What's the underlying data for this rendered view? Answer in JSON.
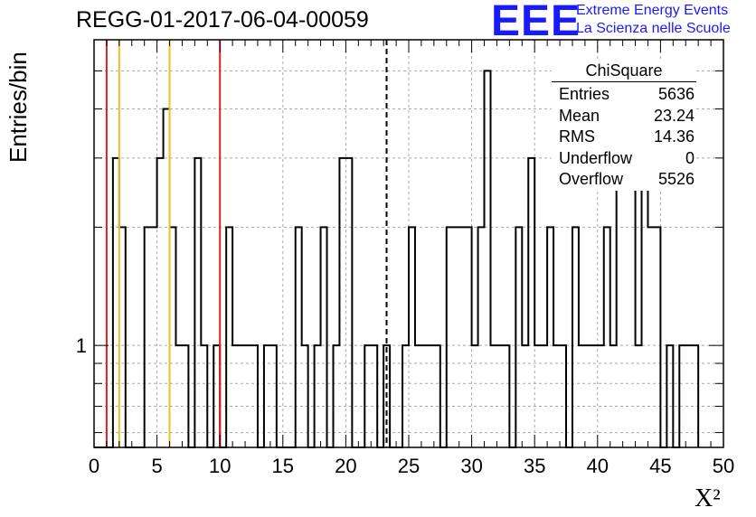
{
  "chart_data": {
    "type": "histogram",
    "title": "REGG-01-2017-06-04-00059",
    "xlabel": "X²",
    "ylabel": "Entries/bin",
    "xlim": [
      0,
      50
    ],
    "y_scale": "log",
    "ylim": [
      0.55,
      6.0
    ],
    "x_ticks": [
      "0",
      "5",
      "10",
      "15",
      "20",
      "25",
      "30",
      "35",
      "40",
      "45",
      "50"
    ],
    "y_tick_label": "1",
    "grid": true,
    "bin_width": 0.5,
    "bin_values": [
      0,
      0,
      3,
      2,
      0,
      0,
      0,
      2,
      2,
      3,
      4,
      2,
      1,
      1,
      0,
      3,
      1,
      0,
      1,
      0,
      2,
      1,
      1,
      1,
      1,
      0,
      1,
      1,
      0,
      0,
      0,
      2,
      1,
      0,
      1,
      2,
      0,
      1,
      3,
      3,
      0,
      0,
      1,
      1,
      0,
      1,
      0,
      0,
      1,
      2,
      1,
      1,
      1,
      1,
      0,
      2,
      2,
      2,
      2,
      1,
      2,
      5,
      1,
      1,
      1,
      0,
      2,
      1,
      3,
      1,
      1,
      2,
      1,
      1,
      0,
      2,
      1,
      1,
      1,
      1,
      2,
      1,
      3,
      3,
      4,
      1,
      4,
      2,
      2,
      0,
      1,
      0,
      1,
      1,
      1
    ],
    "bins_start": 0.5,
    "vertical_lines": [
      {
        "x": 1.0,
        "color": "#dd2222",
        "style": "solid"
      },
      {
        "x": 2.0,
        "color": "#f0c020",
        "style": "solid"
      },
      {
        "x": 6.0,
        "color": "#f0c020",
        "style": "solid"
      },
      {
        "x": 10.0,
        "color": "#dd2222",
        "style": "solid"
      },
      {
        "x": 23.24,
        "color": "#000000",
        "style": "dashed"
      }
    ],
    "stats": {
      "name": "ChiSquare",
      "rows": [
        {
          "label": "Entries",
          "value": "5636"
        },
        {
          "label": "Mean",
          "value": "23.24"
        },
        {
          "label": "RMS",
          "value": "14.36"
        },
        {
          "label": "Underflow",
          "value": "0"
        },
        {
          "label": "Overflow",
          "value": "5526"
        }
      ]
    }
  },
  "logo": {
    "mark": "EEE",
    "line1": "Extreme Energy Events",
    "line2": "La Scienza nelle Scuole"
  }
}
